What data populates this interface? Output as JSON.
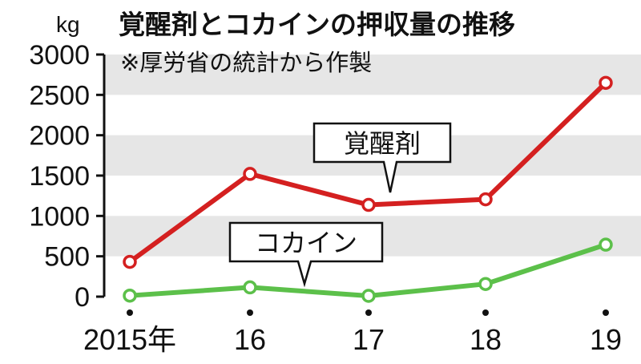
{
  "chart_data": {
    "type": "line",
    "title": "覚醒剤とコカインの押収量の推移",
    "subtitle": "※厚労省の統計から作製",
    "unit": "kg",
    "categories": [
      "2015年",
      "16",
      "17",
      "18",
      "19"
    ],
    "ylim": [
      0,
      3000
    ],
    "yticks": [
      0,
      500,
      1000,
      1500,
      2000,
      2500,
      3000
    ],
    "series": [
      {
        "name": "覚醒剤",
        "color": "#d42020",
        "values": [
          431,
          1521,
          1137,
          1206,
          2649
        ]
      },
      {
        "name": "コカイン",
        "color": "#5cc04a",
        "values": [
          13,
          115,
          10,
          157,
          644
        ]
      }
    ],
    "grid": "alternating horizontal bands",
    "colors": {
      "band": "#e6e6e6",
      "axis": "#111111"
    }
  }
}
